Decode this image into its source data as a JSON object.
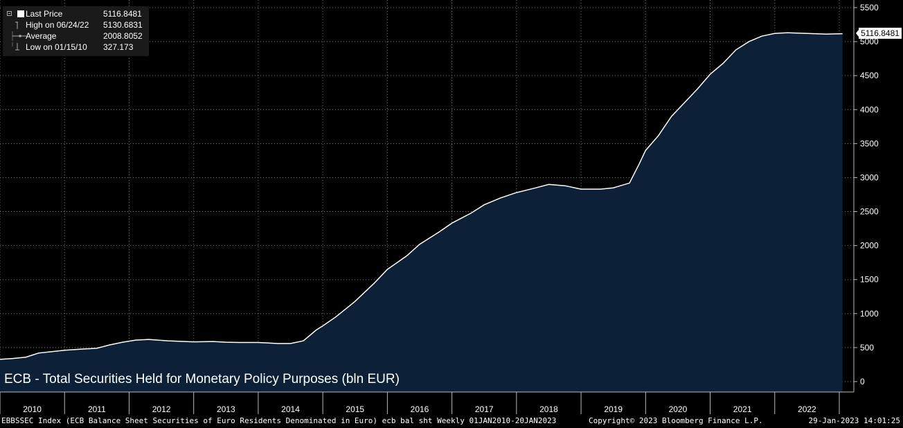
{
  "chart_data": {
    "type": "area",
    "title": "ECB - Total Securities Held for Monetary Policy Purposes (bln EUR)",
    "x_tick_labels": [
      "2010",
      "2011",
      "2012",
      "2013",
      "2014",
      "2015",
      "2016",
      "2017",
      "2018",
      "2019",
      "2020",
      "2021",
      "2022"
    ],
    "y_tick_labels": [
      "0",
      "500",
      "1000",
      "1500",
      "2000",
      "2500",
      "3000",
      "3500",
      "4000",
      "4500",
      "5000",
      "5500"
    ],
    "ylim": [
      0,
      5500
    ],
    "xlim": [
      2010.0,
      2023.05
    ],
    "grid": true,
    "last_value_label": "5116.8481",
    "series": [
      {
        "x": [
          2010.04,
          2010.2,
          2010.4,
          2010.6,
          2010.8,
          2011.0,
          2011.3,
          2011.5,
          2011.7,
          2011.9,
          2012.1,
          2012.3,
          2012.6,
          2013.0,
          2013.3,
          2013.5,
          2013.7,
          2014.0,
          2014.3,
          2014.5,
          2014.7,
          2014.9,
          2015.0,
          2015.2,
          2015.5,
          2015.8,
          2016.0,
          2016.3,
          2016.5,
          2016.8,
          2017.0,
          2017.3,
          2017.5,
          2017.75,
          2018.0,
          2018.3,
          2018.5,
          2018.75,
          2019.0,
          2019.3,
          2019.5,
          2019.75,
          2019.9,
          2020.0,
          2020.2,
          2020.4,
          2020.6,
          2020.8,
          2021.0,
          2021.2,
          2021.4,
          2021.6,
          2021.8,
          2022.0,
          2022.2,
          2022.5,
          2022.8,
          2023.05
        ],
        "values": [
          327.173,
          340,
          360,
          420,
          440,
          460,
          480,
          490,
          540,
          580,
          610,
          620,
          600,
          585,
          590,
          580,
          575,
          575,
          560,
          560,
          600,
          760,
          820,
          950,
          1180,
          1450,
          1650,
          1850,
          2020,
          2200,
          2330,
          2480,
          2600,
          2700,
          2780,
          2850,
          2900,
          2880,
          2830,
          2830,
          2850,
          2920,
          3200,
          3400,
          3620,
          3900,
          4100,
          4300,
          4520,
          4680,
          4880,
          5000,
          5080,
          5120,
          5130.6831,
          5120,
          5110,
          5116.8481
        ]
      }
    ]
  },
  "legend": {
    "items": [
      {
        "label": "Last Price",
        "value": "5116.8481"
      },
      {
        "label": "High on 06/24/22",
        "value": "5130.6831"
      },
      {
        "label": "Average",
        "value": "2008.8052"
      },
      {
        "label": "Low on 01/15/10",
        "value": "327.173"
      }
    ]
  },
  "footer": {
    "left": "EBBSSEC Index (ECB Balance Sheet Securities of Euro Residents Denominated in Euro) ecb bal sht  Weekly 01JAN2010-20JAN2023",
    "center": "Copyright© 2023 Bloomberg Finance L.P.",
    "right": "29-Jan-2023 14:01:25"
  },
  "colors": {
    "background": "#000000",
    "area_fill": "#0c2038",
    "line": "#ffffff",
    "grid": "#7a7a7a",
    "legend_bg": "#1a1a1a"
  }
}
